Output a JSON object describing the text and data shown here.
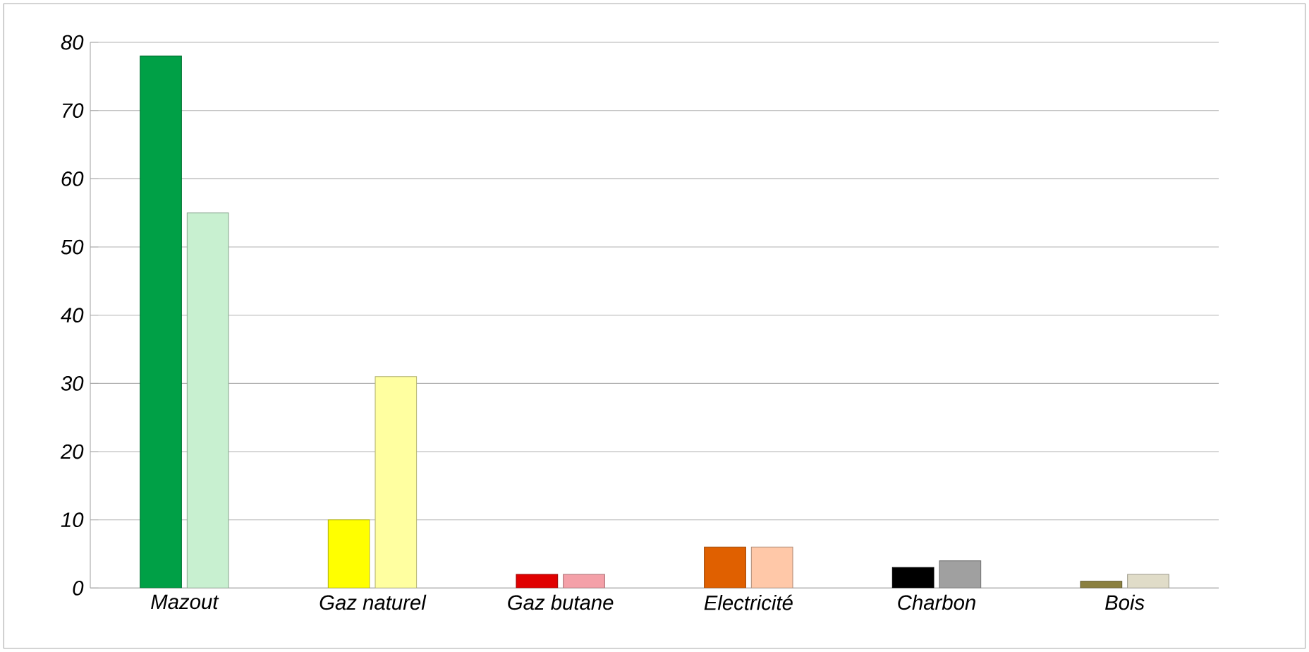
{
  "chart_data": {
    "type": "bar",
    "categories": [
      "Mazout",
      "Gaz naturel",
      "Gaz butane",
      "Electricité",
      "Charbon",
      "Bois"
    ],
    "series": [
      {
        "colors": [
          "#00a046",
          "#ffff00",
          "#e00000",
          "#e06000",
          "#000000",
          "#8b8040"
        ],
        "values": [
          78,
          10,
          2,
          6,
          3,
          1
        ]
      },
      {
        "colors": [
          "#c8f0d0",
          "#ffffa0",
          "#f4a0a8",
          "#ffc8a8",
          "#a0a0a0",
          "#e0dcc8"
        ],
        "values": [
          55,
          31,
          2,
          6,
          4,
          2
        ]
      }
    ],
    "ylim": [
      0,
      80
    ],
    "yticks": [
      0,
      10,
      20,
      30,
      40,
      50,
      60,
      70,
      80
    ],
    "grid": "y"
  }
}
